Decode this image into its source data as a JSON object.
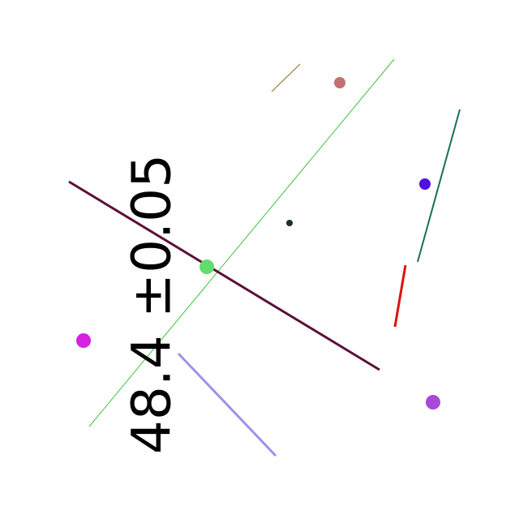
{
  "label": {
    "text": "48.4 ±0.05"
  },
  "colors": {
    "olive_segment": "#8a6a2a",
    "green_line": "#3cc23c",
    "teal_line": "#1a6e5a",
    "maroon_line": "#5a1038",
    "red_line": "#e01010",
    "lavender_line": "#a090e8",
    "rose_dot": "#c07070",
    "blue_dot": "#5010e0",
    "dark_dot": "#1a3020",
    "lime_dot": "#60dc70",
    "magenta_dot": "#d820e0",
    "purple_dot": "#a848d8"
  }
}
